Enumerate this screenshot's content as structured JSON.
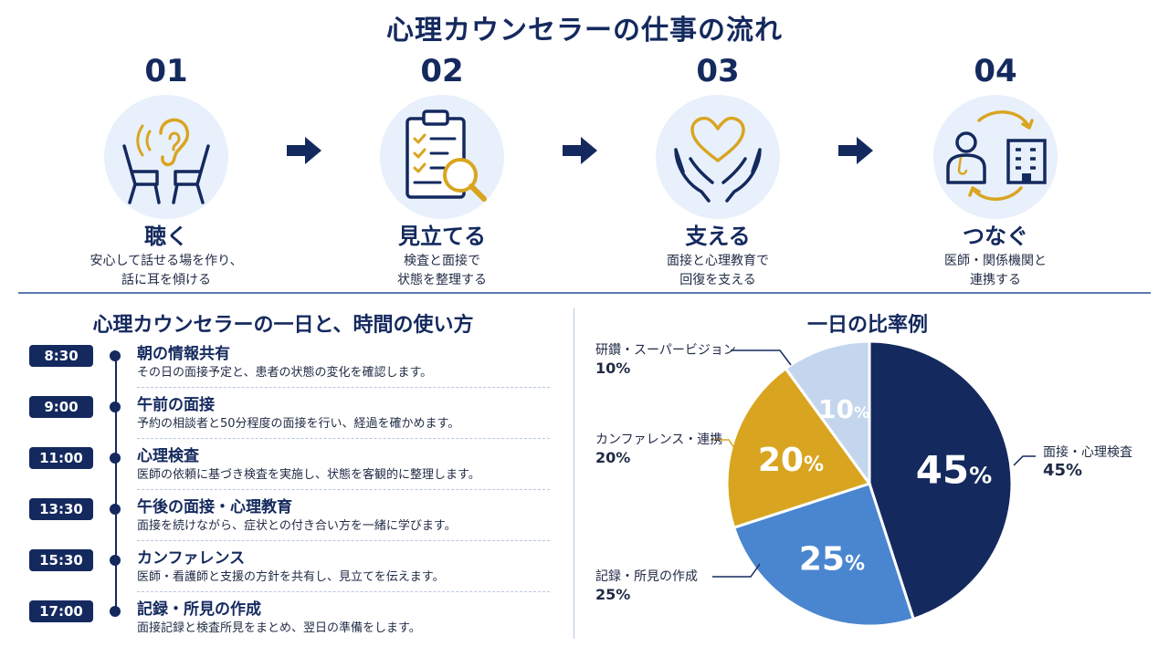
{
  "title": "心理カウンセラーの仕事の流れ",
  "steps": [
    {
      "num": "01",
      "title": "聴く",
      "desc": "安心して話せる場を作り、\n話に耳を傾ける",
      "icon": "listening-icon"
    },
    {
      "num": "02",
      "title": "見立てる",
      "desc": "検査と面接で\n状態を整理する",
      "icon": "clipboard-magnifier-icon"
    },
    {
      "num": "03",
      "title": "支える",
      "desc": "面接と心理教育で\n回復を支える",
      "icon": "heart-hands-icon"
    },
    {
      "num": "04",
      "title": "つなぐ",
      "desc": "医師・関係機関と\n連携する",
      "icon": "doctor-building-icon"
    }
  ],
  "schedule": {
    "title": "心理カウンセラーの一日と、時間の使い方",
    "items": [
      {
        "time": "8:30",
        "head": "朝の情報共有",
        "desc": "その日の面接予定と、患者の状態の変化を確認します。"
      },
      {
        "time": "9:00",
        "head": "午前の面接",
        "desc": "予約の相談者と50分程度の面接を行い、経過を確かめます。"
      },
      {
        "time": "11:00",
        "head": "心理検査",
        "desc": "医師の依頼に基づき検査を実施し、状態を客観的に整理します。"
      },
      {
        "time": "13:30",
        "head": "午後の面接・心理教育",
        "desc": "面接を続けながら、症状との付き合い方を一緒に学びます。"
      },
      {
        "time": "15:30",
        "head": "カンファレンス",
        "desc": "医師・看護師と支援の方針を共有し、見立てを伝えます。"
      },
      {
        "time": "17:00",
        "head": "記録・所見の作成",
        "desc": "面接記録と検査所見をまとめ、翌日の準備をします。"
      }
    ]
  },
  "chart_data": {
    "type": "pie",
    "title": "一日の比率例",
    "slices": [
      {
        "label": "面接・心理検査",
        "value": 45,
        "display": "45%",
        "inner": "45",
        "color": "#14295e"
      },
      {
        "label": "記録・所見の作成",
        "value": 25,
        "display": "25%",
        "inner": "25",
        "color": "#4a86d0"
      },
      {
        "label": "カンファレンス・連携",
        "value": 20,
        "display": "20%",
        "inner": "20",
        "color": "#d9a521"
      },
      {
        "label": "研鑽・スーパービジョン",
        "value": 10,
        "display": "10%",
        "inner": "10",
        "color": "#c4d6ee"
      }
    ],
    "percent_sign": "%"
  },
  "colors": {
    "navy": "#14295e",
    "accent_gold": "#d9a521",
    "light_blue": "#e8f0fb"
  }
}
